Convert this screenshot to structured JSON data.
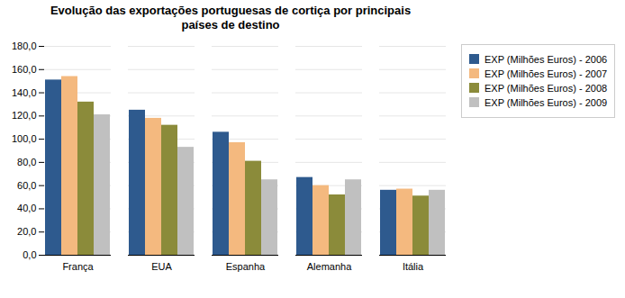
{
  "chart_data": {
    "type": "bar",
    "title": "Evolução das exportações portuguesas de cortiça por principais\npaíses de destino",
    "categories": [
      "França",
      "EUA",
      "Espanha",
      "Alemanha",
      "Itália"
    ],
    "series": [
      {
        "name": "EXP (Milhões Euros) - 2006",
        "color": "#2E5A8E",
        "values": [
          151,
          125,
          106,
          67,
          56
        ]
      },
      {
        "name": "EXP (Milhões Euros) - 2007",
        "color": "#F4B97F",
        "values": [
          154,
          118,
          97,
          60,
          57
        ]
      },
      {
        "name": "EXP (Milhões Euros) - 2008",
        "color": "#8B8B3A",
        "values": [
          132,
          112,
          81,
          52,
          51
        ]
      },
      {
        "name": "EXP (Milhões Euros) - 2009",
        "color": "#C0C0C0",
        "values": [
          121,
          93,
          65,
          65,
          56
        ]
      }
    ],
    "ylim": [
      0,
      180
    ],
    "yticks": [
      {
        "value": 0,
        "label": "0,0"
      },
      {
        "value": 20,
        "label": "20,0"
      },
      {
        "value": 40,
        "label": "40,0"
      },
      {
        "value": 60,
        "label": "60,0"
      },
      {
        "value": 80,
        "label": "80,0"
      },
      {
        "value": 100,
        "label": "100,0"
      },
      {
        "value": 120,
        "label": "120,0"
      },
      {
        "value": 140,
        "label": "140,0"
      },
      {
        "value": 160,
        "label": "160,0"
      },
      {
        "value": 180,
        "label": "180,0"
      }
    ],
    "grid": true,
    "legend": "right"
  }
}
